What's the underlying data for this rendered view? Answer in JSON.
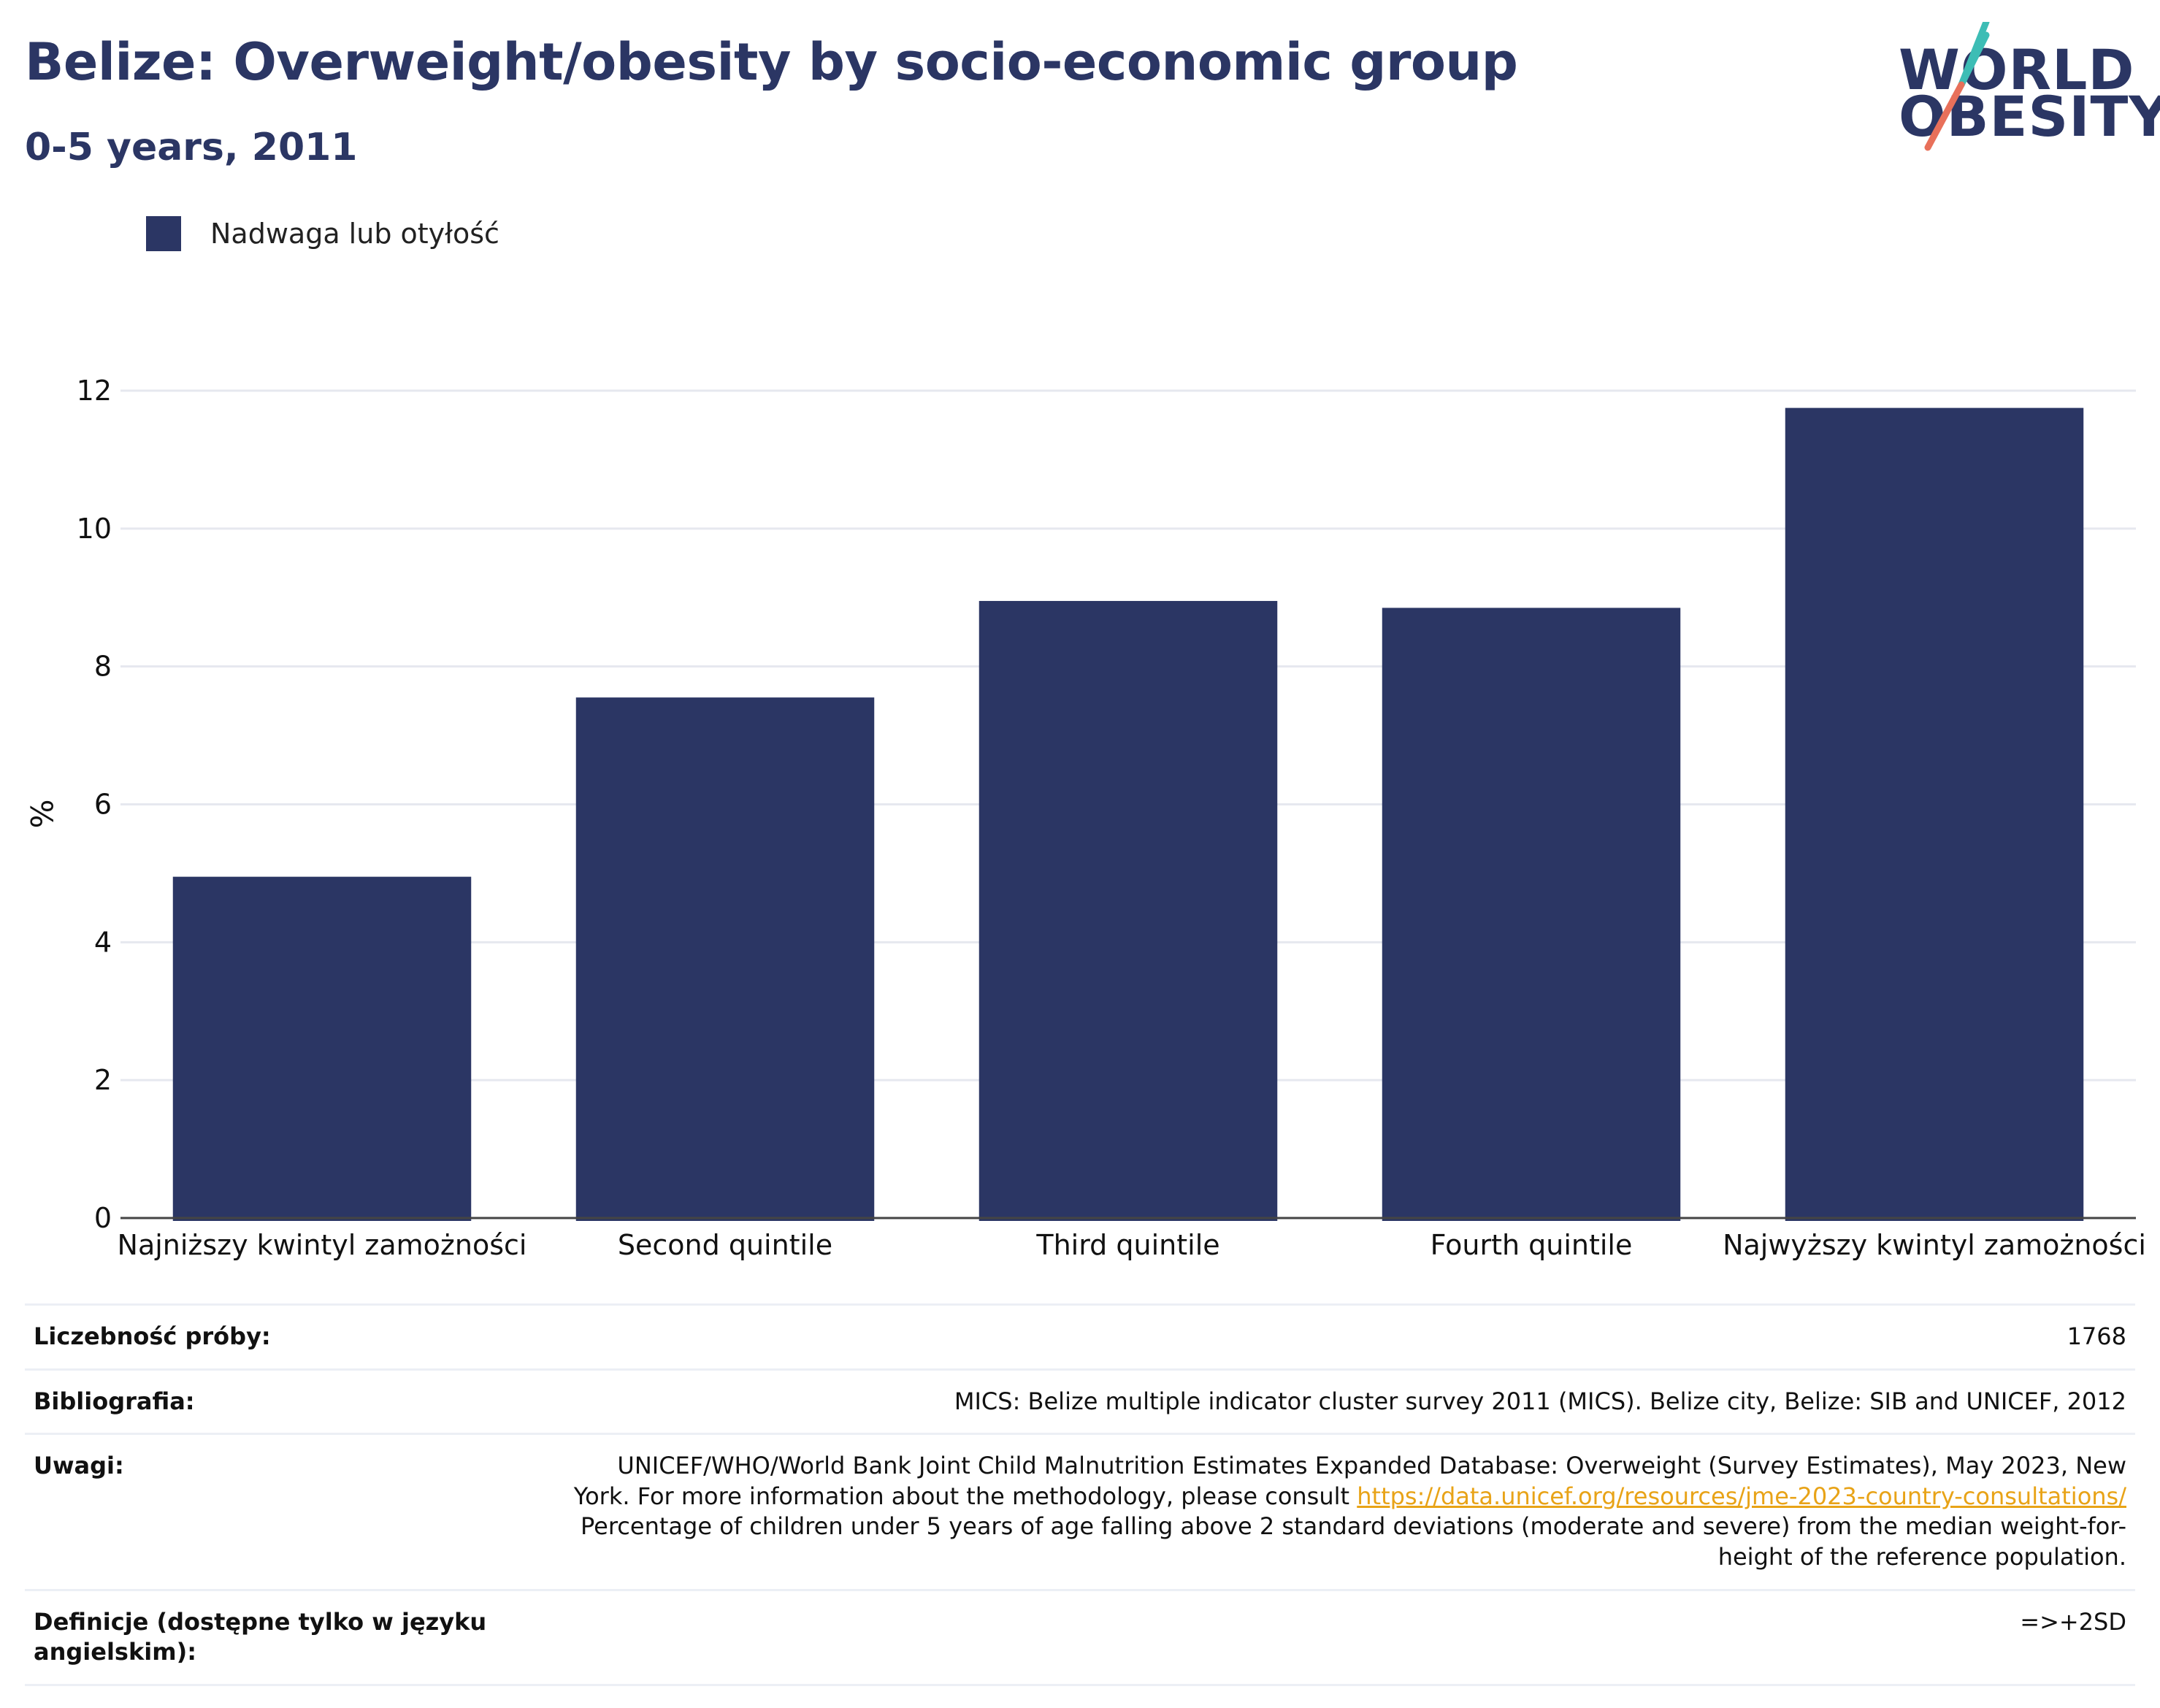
{
  "header": {
    "title": "Belize: Overweight/obesity by socio-economic group",
    "subtitle": "0-5 years, 2011"
  },
  "logo": {
    "line1": "WORLD",
    "line2": "OBESITY",
    "colors": {
      "navy": "#2b3664",
      "teal": "#3dbdb5",
      "coral": "#e8705a"
    }
  },
  "legend": {
    "label": "Nadwaga lub otyłość",
    "color": "#2b3664"
  },
  "chart_data": {
    "type": "bar",
    "categories": [
      "Najniższy kwintyl zamożności",
      "Second quintile",
      "Third quintile",
      "Fourth quintile",
      "Najwyższy kwintyl zamożności"
    ],
    "series": [
      {
        "name": "Nadwaga lub otyłość",
        "values": [
          4.95,
          7.55,
          8.95,
          8.85,
          11.75
        ],
        "color": "#2b3664"
      }
    ],
    "title": "Belize: Overweight/obesity by socio-economic group",
    "subtitle": "0-5 years, 2011",
    "xlabel": "",
    "ylabel": "%",
    "ylim": [
      0,
      12
    ],
    "yticks": [
      0,
      2,
      4,
      6,
      8,
      10,
      12
    ],
    "grid": true,
    "legend_position": "top-left"
  },
  "info": {
    "sample_label": "Liczebność próby:",
    "sample_value": "1768",
    "bib_label": "Bibliografia:",
    "bib_value": "MICS: Belize multiple indicator cluster survey 2011 (MICS). Belize city, Belize: SIB and UNICEF, 2012",
    "notes_label": "Uwagi:",
    "notes_text1": "UNICEF/WHO/World Bank Joint Child Malnutrition Estimates Expanded Database: Overweight (Survey Estimates), May 2023, New York. For more information about the methodology, please consult ",
    "notes_link": "https://data.unicef.org/resources/jme-2023-country-consultations/",
    "notes_text2": "Percentage of children under 5 years of age falling above 2 standard deviations (moderate and severe) from the median weight-for-height of the reference population.",
    "def_label": "Definicje (dostępne tylko w języku angielskim):",
    "def_value": "=>+2SD"
  }
}
